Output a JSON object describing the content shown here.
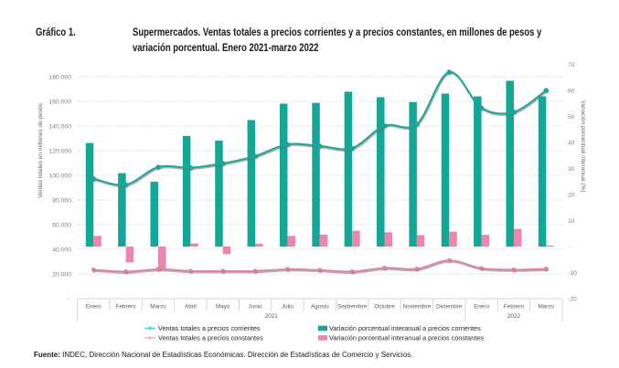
{
  "header": {
    "label": "Gráfico 1.",
    "title_lines": [
      "Supermercados. Ventas totales a precios corrientes y a precios constantes, en millones de pesos y",
      "variación porcentual. Enero 2021-marzo 2022"
    ]
  },
  "chart_data": {
    "type": "bar",
    "title": "Supermercados. Ventas totales a precios corrientes y a precios constantes, en millones de pesos y variación porcentual. Enero 2021-marzo 2022",
    "categories": [
      "Enero",
      "Febrero",
      "Marzo",
      "Abril",
      "Mayo",
      "Junio",
      "Julio",
      "Agosto",
      "Septiembre",
      "Octubre",
      "Noviembre",
      "Diciembre",
      "Enero",
      "Febrero",
      "Marzo"
    ],
    "category_groups": [
      {
        "label": "2021",
        "span": 12
      },
      {
        "label": "2022",
        "span": 3
      }
    ],
    "xlabel": "",
    "y_left": {
      "label": "Ventas totales en millones de pesos",
      "ylim": [
        0,
        190000
      ],
      "ticks": [
        0,
        20000,
        40000,
        60000,
        80000,
        100000,
        120000,
        140000,
        160000,
        180000
      ],
      "tick_labels": [
        "-",
        "20.000",
        "40.000",
        "60.000",
        "80.000",
        "100.000",
        "120.000",
        "140.000",
        "160.000",
        "180.000"
      ]
    },
    "y_right": {
      "label": "Variación porcentual interanual (%)",
      "ylim": [
        -20,
        70
      ],
      "ticks": [
        -20,
        -10,
        0,
        10,
        20,
        30,
        40,
        50,
        60,
        70
      ],
      "tick_labels": [
        "-20",
        "-10",
        "-",
        "10",
        "20",
        "30",
        "40",
        "50",
        "60",
        "70"
      ]
    },
    "series": [
      {
        "name": "Ventas totales a precios corrientes",
        "kind": "line",
        "axis": "left",
        "color": "#1AA89A",
        "legend_color": "#3CE0D2",
        "values": [
          97300,
          92400,
          106700,
          106200,
          109700,
          115600,
          125100,
          123800,
          122100,
          140300,
          141600,
          183800,
          154700,
          151400,
          169000
        ]
      },
      {
        "name": "Ventas totales a precios constantes",
        "kind": "line",
        "axis": "left",
        "color": "#E47BA6",
        "legend_color": "#F2B3CB",
        "values": [
          23500,
          22000,
          23900,
          22500,
          22500,
          22500,
          23900,
          23200,
          22000,
          25000,
          24200,
          31100,
          24700,
          23500,
          24200
        ]
      },
      {
        "name": "Variación porcentual interanual a precios corrientes",
        "kind": "bar",
        "axis": "right",
        "color": "#12A898",
        "legend_color": "#12A898",
        "values": [
          39.8,
          28.2,
          24.9,
          42.5,
          40.7,
          48.6,
          54.9,
          55.2,
          59.5,
          57.4,
          55.5,
          58.8,
          57.7,
          63.7,
          57.7
        ]
      },
      {
        "name": "Variación porcentual interanual a precios constantes",
        "kind": "bar",
        "axis": "right",
        "color": "#EE85AE",
        "legend_color": "#EE85AE",
        "values": [
          4.1,
          -6.1,
          -8.7,
          1.2,
          -2.9,
          1.1,
          4.1,
          4.6,
          6.1,
          5.5,
          4.4,
          5.7,
          4.5,
          6.8,
          0.4
        ]
      }
    ],
    "grid": true,
    "legend_position": "bottom"
  },
  "footer": {
    "source_label": "Fuente:",
    "source_text": " INDEC, Dirección Nacional de Estadísticas Económicas. Dirección de Estadísticas de Comercio y Servicios."
  }
}
